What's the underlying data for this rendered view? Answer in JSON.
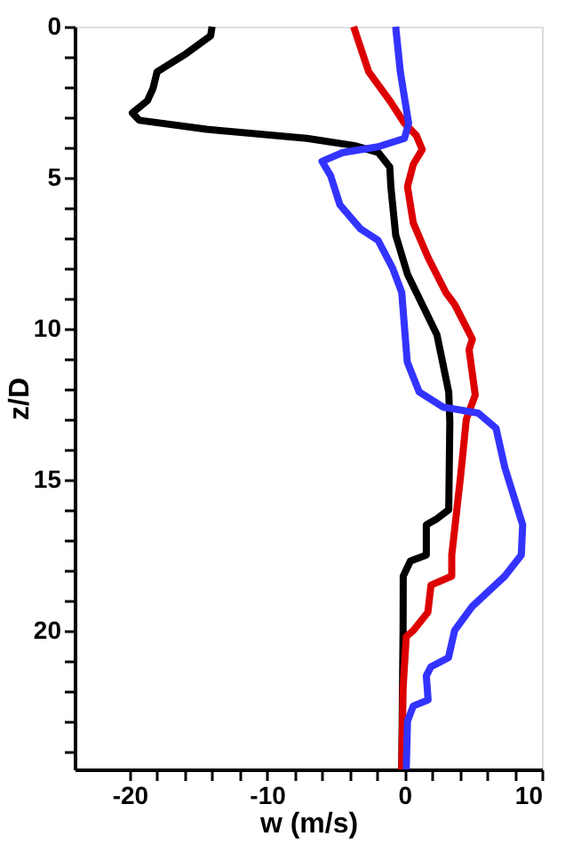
{
  "chart_data": {
    "type": "line",
    "xlabel": "w (m/s)",
    "ylabel": "z/D",
    "xlim": [
      -24,
      10
    ],
    "ylim": [
      24.6,
      0
    ],
    "xticks": [
      -20,
      {
        "value": -18,
        "label": null
      },
      {
        "value": -16,
        "label": null
      },
      {
        "value": -14,
        "label": null
      },
      {
        "value": -12,
        "label": null
      },
      -10,
      {
        "value": -8,
        "label": null
      },
      {
        "value": -6,
        "label": null
      },
      {
        "value": -4,
        "label": null
      },
      {
        "value": -2,
        "label": null
      },
      0,
      {
        "value": 2,
        "label": null
      },
      {
        "value": 4,
        "label": null
      },
      {
        "value": 6,
        "label": null
      },
      {
        "value": 8,
        "label": null
      },
      10
    ],
    "yticks": [
      0,
      {
        "value": 1,
        "label": null
      },
      {
        "value": 2,
        "label": null
      },
      {
        "value": 3,
        "label": null
      },
      {
        "value": 4,
        "label": null
      },
      5,
      {
        "value": 6,
        "label": null
      },
      {
        "value": 7,
        "label": null
      },
      {
        "value": 8,
        "label": null
      },
      {
        "value": 9,
        "label": null
      },
      10,
      {
        "value": 11,
        "label": null
      },
      {
        "value": 12,
        "label": null
      },
      {
        "value": 13,
        "label": null
      },
      {
        "value": 14,
        "label": null
      },
      15,
      {
        "value": 16,
        "label": null
      },
      {
        "value": 17,
        "label": null
      },
      {
        "value": 18,
        "label": null
      },
      {
        "value": 19,
        "label": null
      },
      20,
      {
        "value": 21,
        "label": null
      },
      {
        "value": 22,
        "label": null
      },
      {
        "value": 23,
        "label": null
      },
      {
        "value": 24,
        "label": null
      }
    ],
    "grid": false,
    "marker": "none",
    "line_style": "solid",
    "series": [
      {
        "color": "#000000",
        "x": [
          -14.0,
          -14.1,
          -15.9,
          -18.0,
          -18.3,
          -18.7,
          -19.8,
          -19.3,
          -14.4,
          -7.1,
          -3.65,
          -1.9,
          -1.07,
          -0.99,
          -0.64,
          0.22,
          0.86,
          2.36,
          3.22,
          3.3,
          3.22,
          2.36,
          1.59,
          1.59,
          0.43,
          -0.09,
          -0.1,
          -0.2
        ],
        "values": [
          0,
          0.3,
          0.9,
          1.5,
          2.05,
          2.45,
          2.86,
          3.1,
          3.4,
          3.7,
          3.94,
          4.17,
          4.65,
          5.3,
          6.9,
          8.2,
          8.8,
          10.2,
          12.1,
          13.1,
          16.0,
          16.3,
          16.5,
          17.5,
          17.7,
          18.2,
          19.9,
          24.6
        ]
      },
      {
        "color": "#dd0000",
        "x": [
          -3.7,
          -2.6,
          -1.07,
          0,
          0.86,
          1.29,
          0.64,
          0.22,
          0.64,
          1.72,
          3.0,
          3.65,
          4.94,
          4.7,
          5.15,
          4.5,
          4.08,
          3.44,
          3.44,
          1.93,
          1.7,
          0.64,
          0.13,
          -0.1,
          -0.2
        ],
        "values": [
          0,
          1.5,
          2.45,
          3.2,
          3.6,
          4.07,
          4.56,
          5.3,
          6.5,
          7.65,
          8.8,
          9.2,
          10.35,
          10.7,
          12.2,
          13.0,
          14.9,
          17.5,
          18.2,
          18.5,
          19.4,
          20.0,
          20.2,
          21.9,
          24.6
        ]
      },
      {
        "color": "#3333ff",
        "x": [
          -0.64,
          -0.3,
          0.3,
          0,
          -1.93,
          -4.5,
          -6.0,
          -5.37,
          -4.7,
          -3.2,
          -1.93,
          -0.86,
          -0.2,
          0.2,
          1.07,
          2.8,
          5.37,
          6.66,
          7.3,
          8.6,
          8.5,
          7.3,
          4.94,
          3.65,
          3.2,
          1.93,
          1.59,
          1.72,
          0.64,
          0.22,
          0.13
        ],
        "values": [
          0,
          1.5,
          3.2,
          3.7,
          3.98,
          4.17,
          4.46,
          4.94,
          5.9,
          6.7,
          7.07,
          8.0,
          8.8,
          11.1,
          12.1,
          12.6,
          12.8,
          13.3,
          14.6,
          16.5,
          17.5,
          18.2,
          19.2,
          20.0,
          20.9,
          21.2,
          21.5,
          22.3,
          22.5,
          23.0,
          24.6
        ]
      }
    ]
  }
}
